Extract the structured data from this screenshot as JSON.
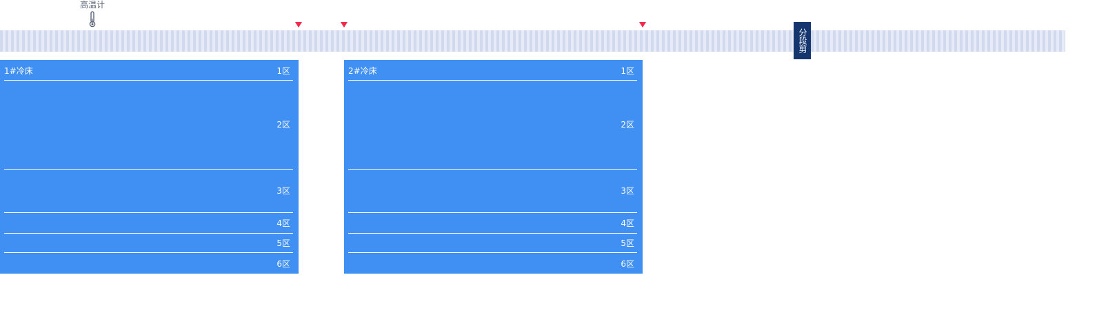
{
  "thermometer": {
    "label": "高温计",
    "icon": "thermometer-icon"
  },
  "shear": {
    "label": "分段剪"
  },
  "markers": {
    "icon": "triangle-down-icon",
    "color": "#f0294d"
  },
  "colors": {
    "bed": "#4090f4",
    "shear": "#14356e",
    "track": "#dde3f3"
  },
  "beds": [
    {
      "title": "1#冷床",
      "zones": [
        "1区",
        "2区",
        "3区",
        "4区",
        "5区",
        "6区"
      ]
    },
    {
      "title": "2#冷床",
      "zones": [
        "1区",
        "2区",
        "3区",
        "4区",
        "5区",
        "6区"
      ]
    }
  ]
}
